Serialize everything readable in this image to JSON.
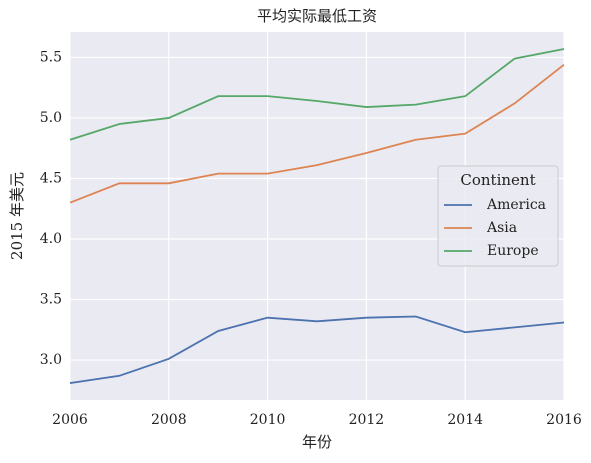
{
  "chart_data": {
    "type": "line",
    "title": "平均实际最低工资",
    "xlabel": "年份",
    "ylabel": "2015 年美元",
    "x": [
      2006,
      2007,
      2008,
      2009,
      2010,
      2011,
      2012,
      2013,
      2014,
      2015,
      2016
    ],
    "series": [
      {
        "name": "America",
        "color": "#4c72b0",
        "values": [
          2.81,
          2.87,
          3.01,
          3.24,
          3.35,
          3.32,
          3.35,
          3.36,
          3.23,
          3.27,
          3.31
        ]
      },
      {
        "name": "Asia",
        "color": "#dd8452",
        "values": [
          4.3,
          4.46,
          4.46,
          4.54,
          4.54,
          4.61,
          4.71,
          4.82,
          4.87,
          5.12,
          5.44
        ]
      },
      {
        "name": "Europe",
        "color": "#55a868",
        "values": [
          4.82,
          4.95,
          5.0,
          5.18,
          5.18,
          5.14,
          5.09,
          5.11,
          5.18,
          5.49,
          5.57
        ]
      }
    ],
    "xlim": [
      2006,
      2016
    ],
    "xticks": [
      2006,
      2008,
      2010,
      2012,
      2014,
      2016
    ],
    "ylim": [
      2.67,
      5.71
    ],
    "yticks": [
      {
        "value": 3,
        "label": "3.0"
      },
      3.5,
      {
        "value": 4,
        "label": "4.0"
      },
      4.5,
      {
        "value": 5,
        "label": "5.0"
      },
      5.5
    ],
    "grid": true,
    "legend_title": "Continent",
    "legend_loc": "center right"
  }
}
